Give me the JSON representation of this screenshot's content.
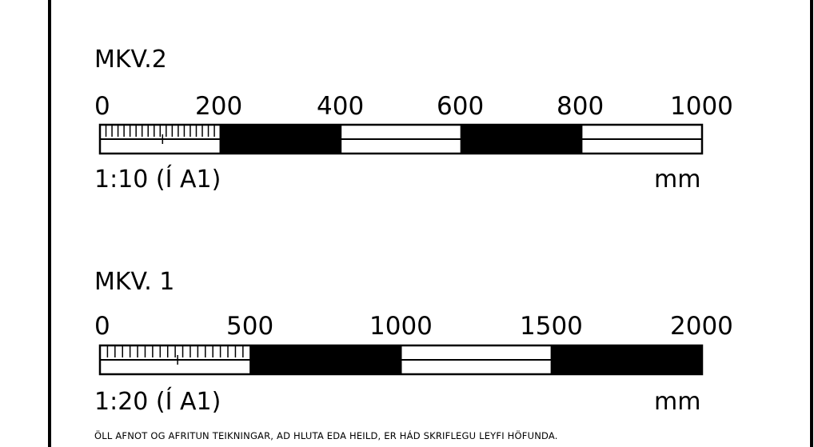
{
  "scales": [
    {
      "title": "MKV.2",
      "ticks": [
        "0",
        "200",
        "400",
        "600",
        "800",
        "1000"
      ],
      "ratio": "1:10  (Í A1)",
      "unit": "mm",
      "segments": 5,
      "fine_divisions": 20
    },
    {
      "title": "MKV.  1",
      "ticks": [
        "0",
        "500",
        "1000",
        "1500",
        "2000"
      ],
      "ratio": "1:20  (Í A1)",
      "unit": "mm",
      "segments": 4,
      "fine_divisions": 20
    }
  ],
  "footer": "ÖLL AFNOT OG AFRITUN TEIKNINGAR, AD HLUTA EDA HEILD, ER HÁD SKRIFLEGU LEYFI HÖFUNDA.",
  "colors": {
    "ink": "#000000",
    "paper": "#ffffff"
  }
}
